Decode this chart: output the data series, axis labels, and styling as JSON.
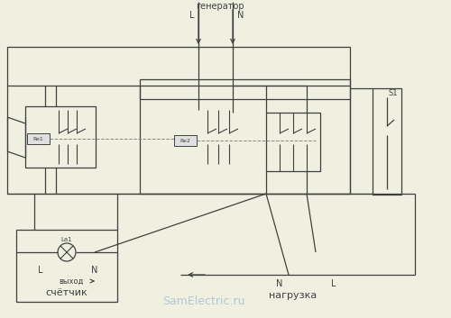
{
  "bg_color": "#f0f0e0",
  "line_color": "#404040",
  "dash_color": "#888888",
  "labels": {
    "generator": "генератор",
    "L_gen": "L",
    "N_gen": "N",
    "N_load": "N",
    "L_load": "L",
    "load": "нагрузка",
    "meter": "счётчик",
    "output": "выход",
    "L_meter": "L",
    "N_meter": "N",
    "Re1": "Re1",
    "Re2": "Re2",
    "La1": "La1",
    "S1": "S1"
  },
  "watermark": "SamElectric.ru",
  "watermark_color": "#b0c8d8"
}
